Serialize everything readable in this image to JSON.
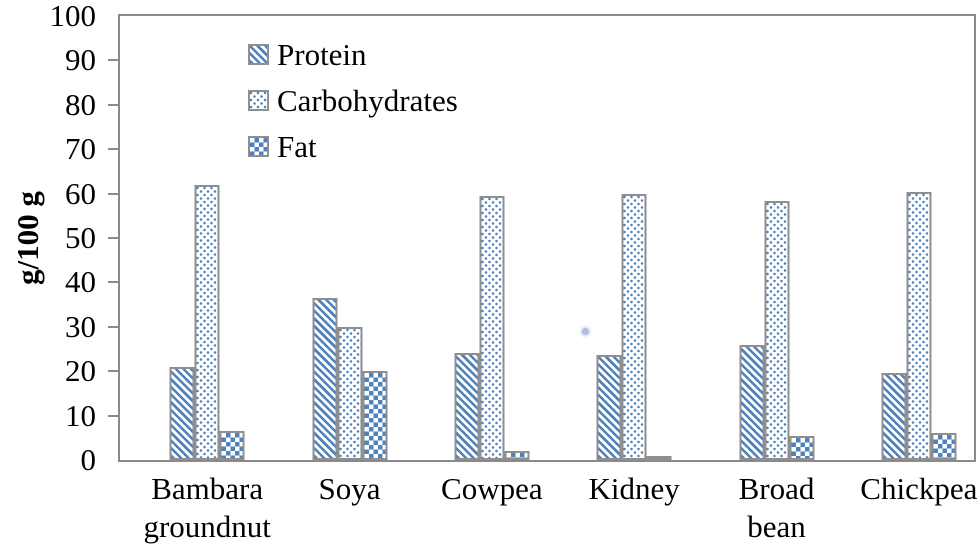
{
  "chart_data": {
    "type": "bar",
    "title": "",
    "xlabel": "",
    "ylabel": "g/100 g",
    "ylim": [
      0,
      100
    ],
    "yticks": [
      0,
      10,
      20,
      30,
      40,
      50,
      60,
      70,
      80,
      90,
      100
    ],
    "grid": false,
    "legend_position": "top-left-inside",
    "categories": [
      "Bambara groundnut",
      "Soya",
      "Cowpea",
      "Kidney",
      "Broad bean",
      "Chickpea"
    ],
    "category_lines": [
      [
        "Bambara",
        "groundnut"
      ],
      [
        "Soya"
      ],
      [
        "Cowpea"
      ],
      [
        "Kidney"
      ],
      [
        "Broad",
        "bean"
      ],
      [
        "Chickpea"
      ]
    ],
    "series": [
      {
        "name": "Protein",
        "pattern": "diagonal-stripes-icon",
        "values": [
          21,
          36.5,
          24,
          23.6,
          26,
          19.5
        ]
      },
      {
        "name": "Carbohydrates",
        "pattern": "dots-icon",
        "values": [
          62,
          30,
          59.5,
          60,
          58.4,
          60.4
        ]
      },
      {
        "name": "Fat",
        "pattern": "checkerboard-icon",
        "values": [
          6.5,
          20,
          2,
          1,
          5.5,
          6
        ]
      }
    ],
    "colors": {
      "bar_blue": "#4f81bd",
      "bar_border": "#8f8f8f",
      "frame": "#8a8a8a",
      "text": "#000000"
    }
  }
}
